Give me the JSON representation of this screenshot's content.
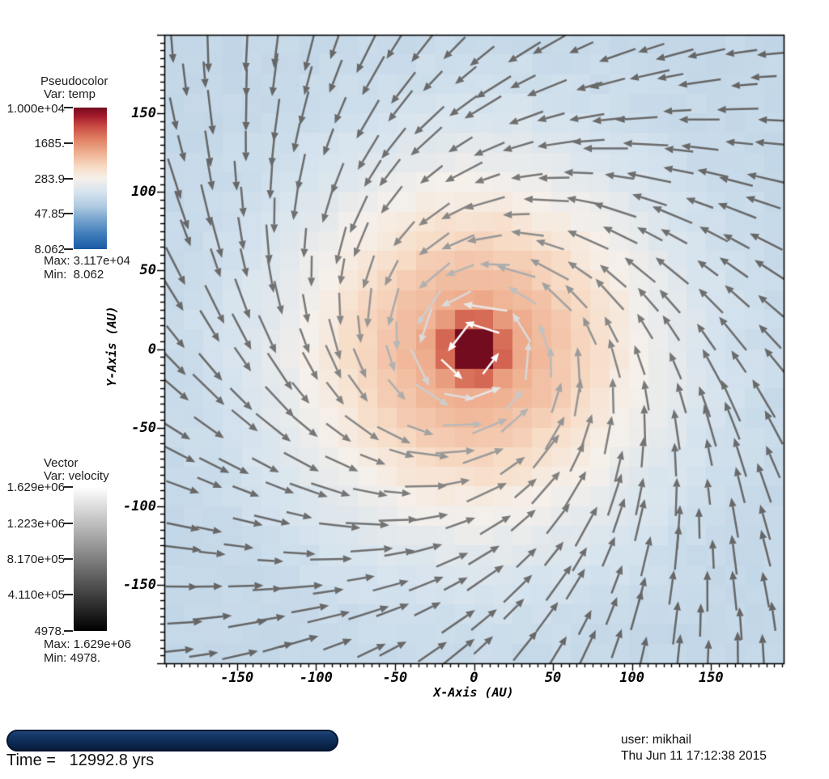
{
  "legends": {
    "pseudocolor": {
      "title": "Pseudocolor",
      "var_label": "Var: temp",
      "ticks": [
        "1.000e+04",
        "1685.",
        "283.9",
        "47.85",
        "8.062"
      ],
      "max_label": "Max: 3.117e+04",
      "min_label": "Min:  8.062"
    },
    "vector": {
      "title": "Vector",
      "var_label": "Var: velocity",
      "ticks": [
        "1.629e+06",
        "1.223e+06",
        "8.170e+05",
        "4.110e+05",
        "4978."
      ],
      "max_label": "Max: 1.629e+06",
      "min_label": "Min: 4978.",
      "gradient_top": "#ffffff",
      "gradient_bottom": "#000000"
    }
  },
  "footer": {
    "time_label": "Time =   12992.8 yrs",
    "user_label": "user: mikhail",
    "date_label": "Thu Jun 11 17:12:38 2015"
  },
  "chart_data": {
    "type": "heatmap",
    "title": "",
    "xlabel": "X-Axis (AU)",
    "ylabel": "Y-Axis (AU)",
    "xlim": [
      -196,
      196
    ],
    "ylim": [
      -200,
      200
    ],
    "x_ticks": [
      -150,
      -100,
      -50,
      0,
      50,
      100,
      150
    ],
    "y_ticks": [
      150,
      100,
      50,
      0,
      -50,
      -100,
      -150
    ],
    "minor_tick_step": 5,
    "grid": false,
    "pseudocolor_field": {
      "variable": "temp",
      "scale": "log",
      "legend_limits": [
        8.062,
        10000
      ],
      "max_value": 31170,
      "min_value": 8.062,
      "center_xy": [
        0,
        0
      ],
      "cell_size_au": 12.25,
      "radial_profile_log10T": "2.0 + 1.1*exp(-(r/110)^2) + 1.6*exp(-(r/16)^2)",
      "colormap": [
        {
          "u": 0.0,
          "c": "#1b5ba6"
        },
        {
          "u": 0.1,
          "c": "#3c7ab8"
        },
        {
          "u": 0.22,
          "c": "#7da7d0"
        },
        {
          "u": 0.3,
          "c": "#aec9e0"
        },
        {
          "u": 0.4,
          "c": "#d5e3ee"
        },
        {
          "u": 0.5,
          "c": "#f6f0ea"
        },
        {
          "u": 0.58,
          "c": "#f7dcc6"
        },
        {
          "u": 0.68,
          "c": "#efb091"
        },
        {
          "u": 0.78,
          "c": "#df7f62"
        },
        {
          "u": 0.87,
          "c": "#c84a42"
        },
        {
          "u": 0.94,
          "c": "#a31a2c"
        },
        {
          "u": 1.0,
          "c": "#740c1f"
        }
      ]
    },
    "vector_field": {
      "variable": "velocity",
      "max_value": 1629000,
      "min_value": 4978,
      "rotation": "counterclockwise",
      "radial_inflow": true,
      "max_inflow_tilt_deg": 50,
      "grid_count": 20,
      "arrow_color_ramp": "black(slow) to white(fast), speed increases toward center"
    }
  }
}
